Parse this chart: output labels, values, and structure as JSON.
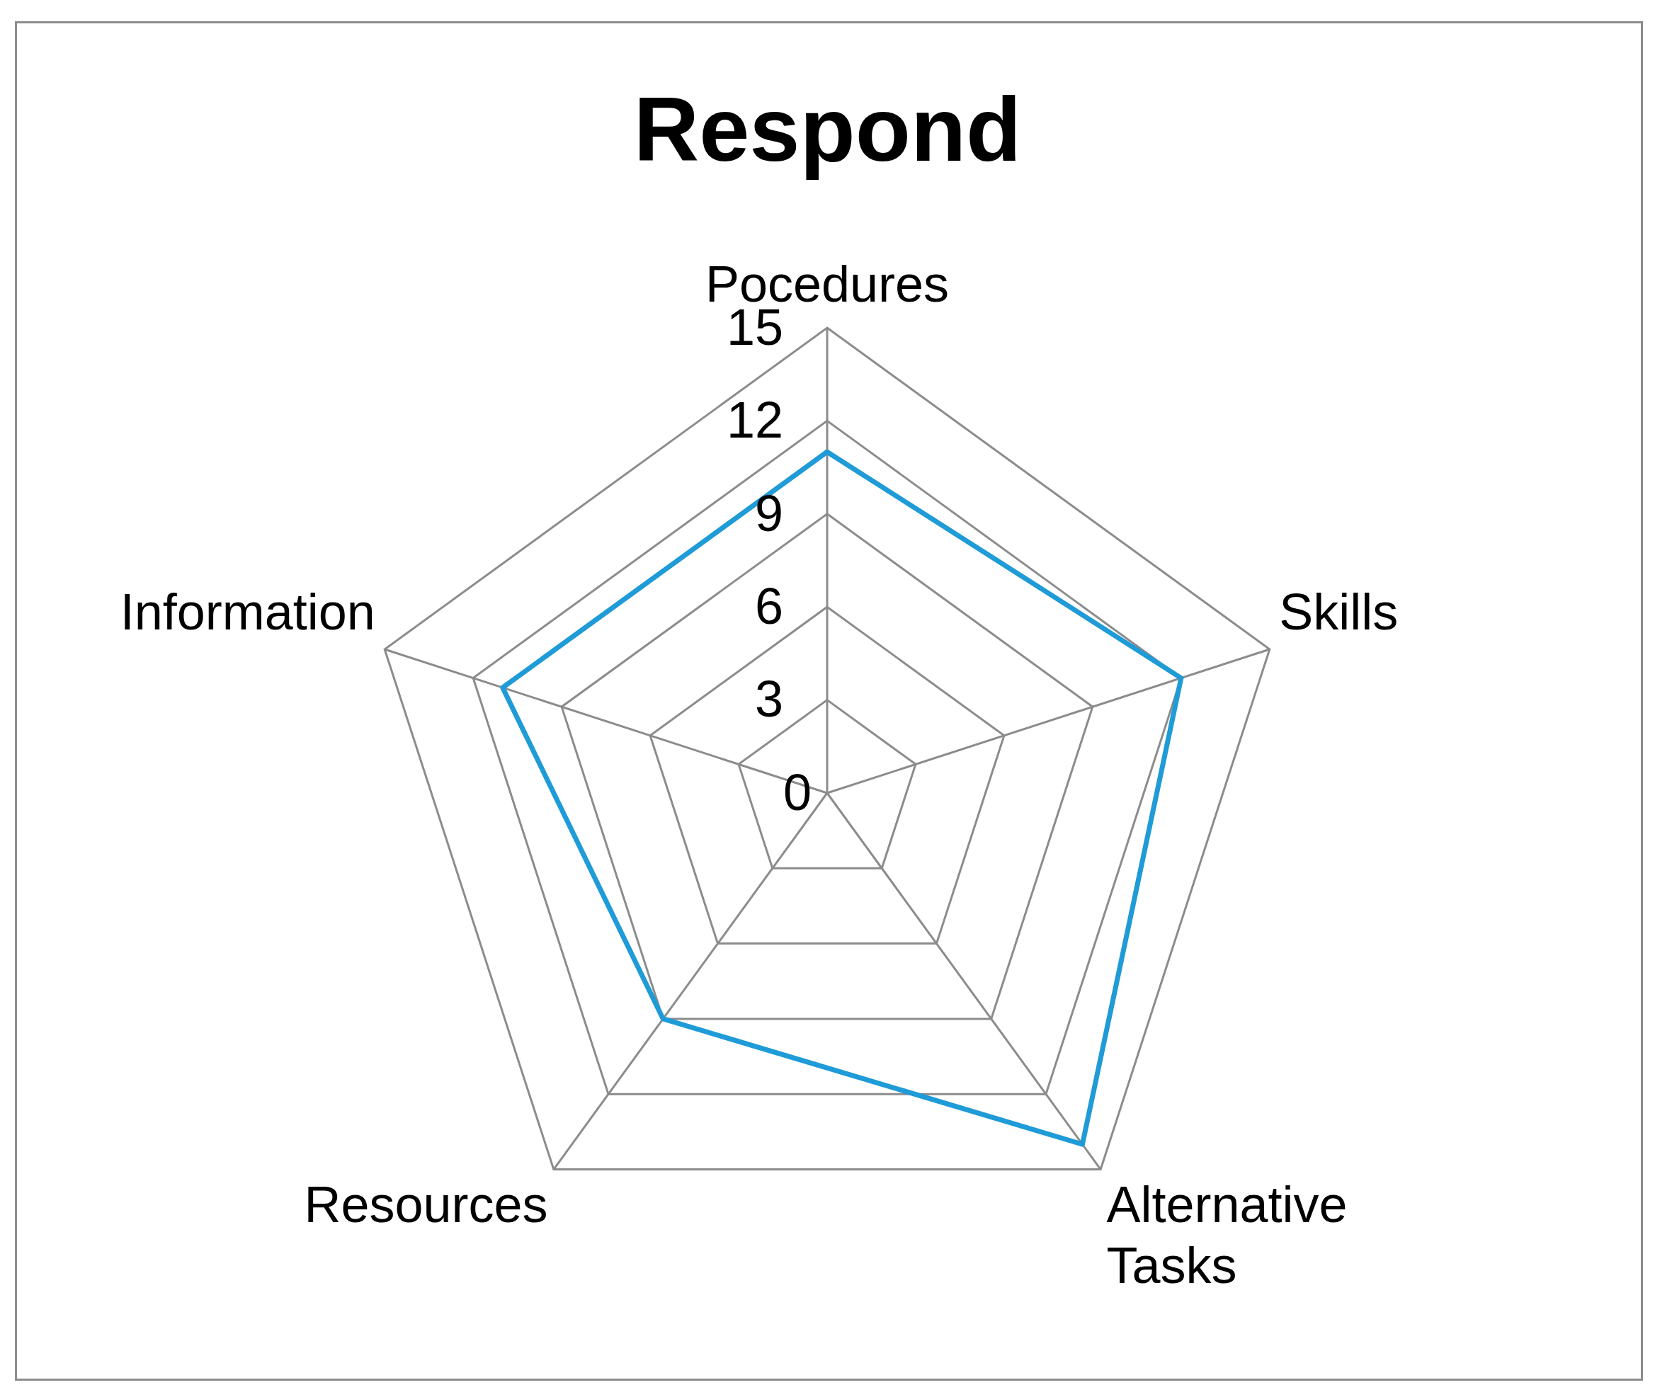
{
  "chart_data": {
    "type": "radar",
    "title": "Respond",
    "categories": [
      "Pocedures",
      "Skills",
      "Alternative Tasks",
      "Resources",
      "Information"
    ],
    "series": [
      {
        "color": "#1f9bd7",
        "values": [
          11,
          12,
          14,
          9,
          11
        ]
      }
    ],
    "ylim": [
      0,
      15
    ],
    "yticks": [
      0,
      3,
      6,
      9,
      12,
      15
    ],
    "grid": true
  }
}
